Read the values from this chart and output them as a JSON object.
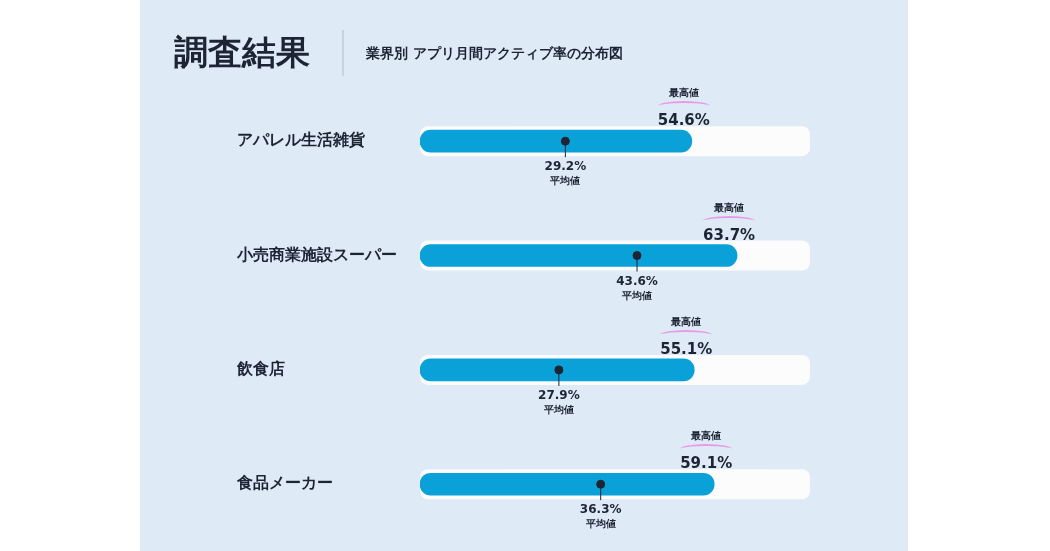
{
  "chart_data": {
    "type": "bar",
    "orientation": "horizontal",
    "title": "調査結果",
    "subtitle": "業界別 アプリ月間アクティブ率の分布図",
    "categories": [
      "アパレル生活雑貨",
      "小売商業施設スーパー",
      "飲食店",
      "食品メーカー"
    ],
    "series": [
      {
        "name": "最高値",
        "color": "#0aa0d8",
        "values": [
          54.6,
          63.7,
          55.1,
          59.1
        ],
        "value_labels": [
          "54.6%",
          "63.7%",
          "55.1%",
          "59.1%"
        ]
      },
      {
        "name": "平均値",
        "type": "scatter",
        "color": "#1d2433",
        "values": [
          29.2,
          43.6,
          27.9,
          36.3
        ],
        "value_labels": [
          "29.2%",
          "43.6%",
          "27.9%",
          "36.3%"
        ]
      }
    ],
    "grid": false,
    "marker": "circle"
  }
}
